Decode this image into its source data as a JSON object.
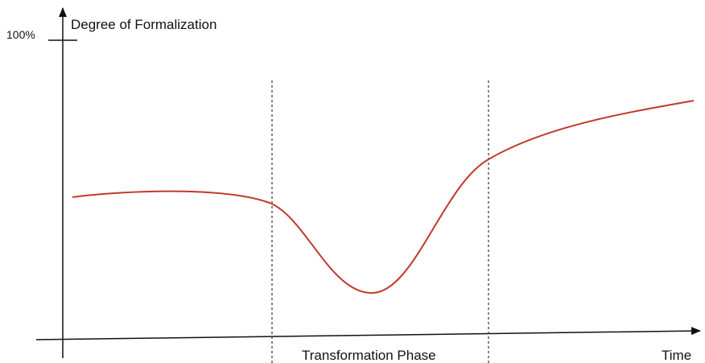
{
  "y_axis": {
    "label": "Degree of Formalization",
    "max_label": "100%"
  },
  "x_axis": {
    "label": "Time"
  },
  "phase": {
    "label": "Transformation Phase"
  }
}
